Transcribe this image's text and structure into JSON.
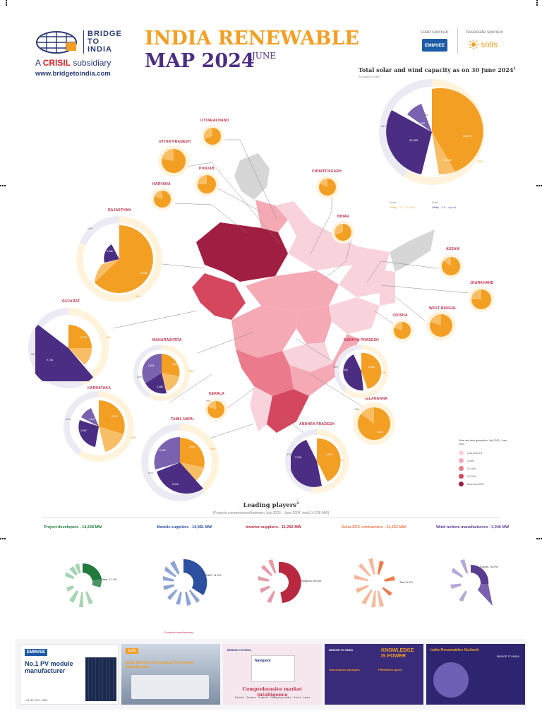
{
  "header": {
    "brand_line1": "BRIDGE",
    "brand_line2": "TO",
    "brand_line3": "INDIA",
    "subsidiary_prefix": "A",
    "subsidiary_brand": "CRISIL",
    "subsidiary_suffix": "subsidiary",
    "website": "www.bridgetoindia.com",
    "title_line1": "INDIA RENEWABLE",
    "title_line2": "MAP 2024",
    "title_month": "JUNE",
    "lead_sponsor_label": "Lead sponsor",
    "associate_sponsor_label": "Associate sponsor",
    "lead_sponsor_name": "EMMVEE",
    "associate_sponsor_name": "solis"
  },
  "total_capacity": {
    "title": "Total solar and wind capacity as on 30 June 2024",
    "title_sup": "1",
    "subtitle": "All figures in MW",
    "values": [
      "85,273",
      "15,880",
      "33,289",
      "12,392",
      "2,553"
    ],
    "outer_left": "41%",
    "outer_right": "59%",
    "legend_solar": "Solar",
    "legend_wind": "Wind",
    "legend_utility": "Utility",
    "legend_ga": "GA",
    "legend_rooftop": "Rooftop",
    "legend_hybrid": "Hybrid",
    "colors": {
      "solar": "#f29f24",
      "wind": "#4b2e83"
    }
  },
  "states": [
    {
      "name": "UTTARAKHAND"
    },
    {
      "name": "UTTAR PRADESH"
    },
    {
      "name": "PUNJAB"
    },
    {
      "name": "HARYANA"
    },
    {
      "name": "CHHATTISGARH"
    },
    {
      "name": "RAJASTHAN",
      "values": [
        "19,468",
        "3,066"
      ],
      "pct_left": "19%",
      "pct_right": "81%"
    },
    {
      "name": "BIHAR"
    },
    {
      "name": "ASSAM"
    },
    {
      "name": "JHARKHAND"
    },
    {
      "name": "GUJARAT",
      "values": [
        "9,705",
        "9,736"
      ],
      "pct_left": "56%",
      "pct_right": "44%"
    },
    {
      "name": "WEST BENGAL"
    },
    {
      "name": "ODISHA"
    },
    {
      "name": "MAHARASHTRA",
      "values": [
        "3,611",
        "2,891",
        "2,488"
      ],
      "pct_left": "42%",
      "pct_right": "58%"
    },
    {
      "name": "MADHYA PRADESH",
      "values": [
        "3,088",
        "2,846"
      ],
      "pct_left": "39%",
      "pct_right": "61%"
    },
    {
      "name": "KARNATAKA",
      "values": [
        "8,784",
        "4,662",
        "1,611"
      ],
      "pct_left": "40%",
      "pct_right": "60%"
    },
    {
      "name": "KERALA",
      "pct_left": "9%"
    },
    {
      "name": "TELANGANA",
      "values": [
        "3,622"
      ],
      "pct_left": "10%"
    },
    {
      "name": "TAMIL NADU",
      "values": [
        "5,555",
        "2,941",
        "5,499"
      ],
      "pct_left": "61%",
      "pct_right": "39%"
    },
    {
      "name": "ANDHRA PRADESH",
      "values": [
        "3,788",
        "2,995"
      ],
      "pct_left": "47%",
      "pct_right": "53%"
    }
  ],
  "map_legend": {
    "title": "Solar and wind generation, July 2023 - June 2024",
    "items": [
      {
        "label": "Less than 5%",
        "color": "#f8d3dc"
      },
      {
        "label": "5-10%",
        "color": "#f4a9b5"
      },
      {
        "label": "10-15%",
        "color": "#ea7a8c"
      },
      {
        "label": "15-20%",
        "color": "#d4475e"
      },
      {
        "label": "More than 20%",
        "color": "#a01e42"
      }
    ]
  },
  "leading": {
    "title": "Leading players",
    "title_sup": "2",
    "subtitle": "(Projects commissioned between July 2023 - June 2024, total 14,238 MW)",
    "categories": [
      {
        "title": "Project developers - 14,238 MW",
        "color": "#1f7a3c",
        "big_label": "Adani, 11.4%"
      },
      {
        "title": "Module suppliers - 14,981 MW",
        "color": "#2c4fa0",
        "big_label": "LONGi, 21.2%",
        "footer": "Domestic manufacturers"
      },
      {
        "title": "Inverter suppliers - 11,252 MW",
        "color": "#b8283f",
        "big_label": "Sungrow, 50.8%"
      },
      {
        "title": "Solar EPC contractors - 11,252 MW",
        "color": "#f07a4a",
        "big_label": "Tata, 8.4%"
      },
      {
        "title": "Wind turbine manufacturers - 3,046 MW",
        "color": "#5a3d90",
        "big_label": "Suzlon, 33.9%"
      }
    ]
  },
  "ads": [
    {
      "brand": "EMMVEE",
      "headline": "No.1 PV module manufacturer",
      "phone": "+91 80 2217 3333"
    },
    {
      "brand": "solis",
      "headline": "Solis World's 3rd Largest PV Inverter Manufacturer"
    },
    {
      "brand": "BRIDGE TO INDIA",
      "product": "Navigator",
      "headline": "Comprehensive market intelligence",
      "features": "Policies · Tenders · Projects · Company profiles · Prices · News"
    },
    {
      "brand": "BRIDGE TO INDIA",
      "headline": "KNOWLEDGE IS POWER",
      "left_heading": "Subscription packages",
      "right_heading": "PREMIUM reports"
    },
    {
      "title": "India Renewables Outlook",
      "brand": "BRIDGE TO INDIA"
    }
  ]
}
